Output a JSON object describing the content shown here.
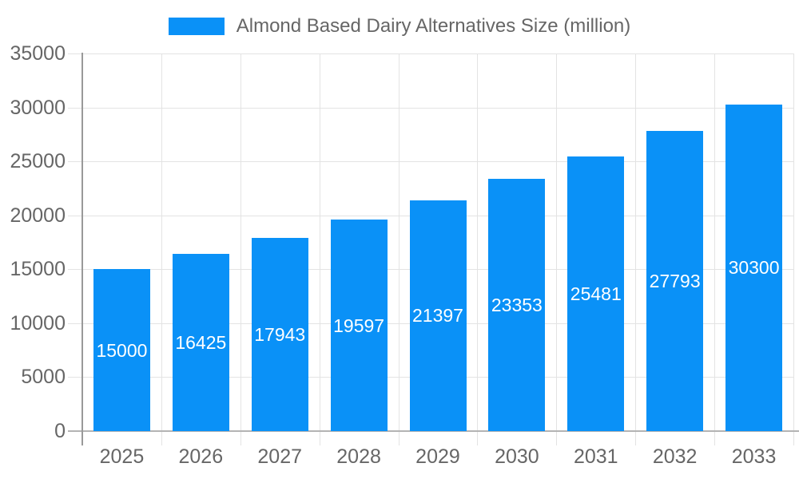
{
  "chart_data": {
    "type": "bar",
    "title": "Almond Based Dairy Alternatives Size (million)",
    "legend_entries": [
      "Almond Based Dairy Alternatives Size (million)"
    ],
    "legend_position": "top-center",
    "categories": [
      "2025",
      "2026",
      "2027",
      "2028",
      "2029",
      "2030",
      "2031",
      "2032",
      "2033"
    ],
    "series": [
      {
        "name": "Almond Based Dairy Alternatives Size (million)",
        "values": [
          15000,
          16425,
          17943,
          19597,
          21397,
          23353,
          25481,
          27793,
          30300
        ]
      }
    ],
    "value_labels_shown": true,
    "value_label_placement": "inside-center",
    "xlabel": "",
    "ylabel": "",
    "ylim": [
      0,
      35000
    ],
    "y_ticks": [
      0,
      5000,
      10000,
      15000,
      20000,
      25000,
      30000,
      35000
    ],
    "grid": true,
    "colors": {
      "bar": "#0a91f7",
      "grid": "#e3e3e3",
      "baseline": "#b3b3b3",
      "y_axis_line": "#999999",
      "tick_text": "#666666",
      "legend_text": "#666666",
      "value_label_text": "#ffffff",
      "background": "#ffffff"
    }
  }
}
